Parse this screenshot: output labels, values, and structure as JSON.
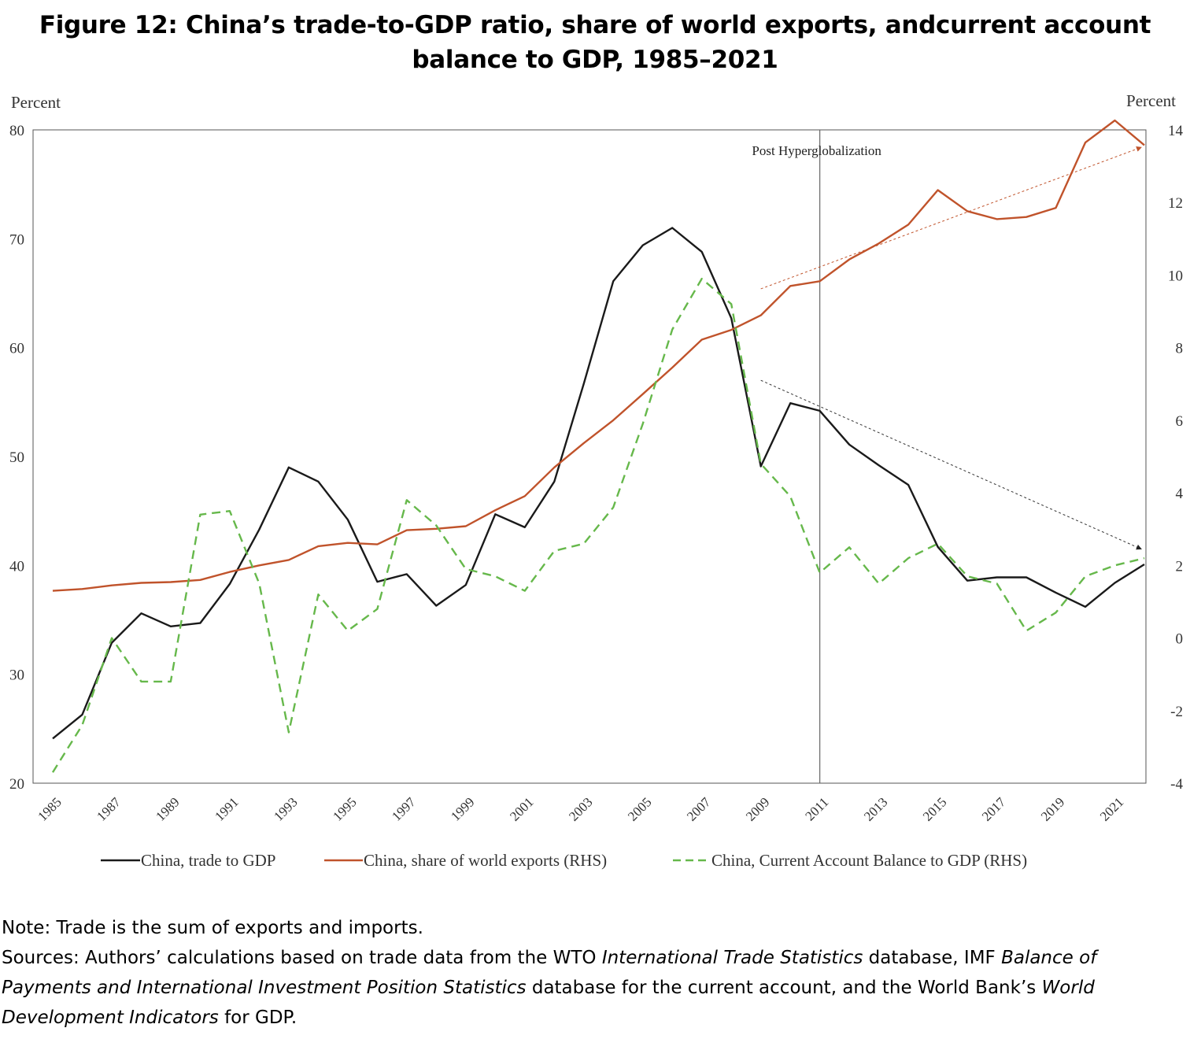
{
  "title": "Figure 12: China’s trade-to-GDP ratio, share of world exports, andcurrent account balance to GDP, 1985–2021",
  "notes": {
    "note": "Note: Trade is the sum of exports and imports.",
    "sources_parts": [
      {
        "text": "Sources: Authors’ calculations based on trade data from the WTO ",
        "italic": false
      },
      {
        "text": "International Trade Statistics",
        "italic": true
      },
      {
        "text": " database, IMF ",
        "italic": false
      },
      {
        "text": "Balance of Payments and International Investment Position Statistics",
        "italic": true
      },
      {
        "text": " database for the current account, and the World Bank’s ",
        "italic": false
      },
      {
        "text": "World Development Indicators",
        "italic": true
      },
      {
        "text": " for GDP.",
        "italic": false
      }
    ]
  },
  "chart_data": {
    "type": "line",
    "title": "Figure 12: China’s trade-to-GDP ratio, share of world exports, andcurrent account balance to GDP, 1985–2021",
    "ylabel_left": "Percent",
    "ylabel_right": "Percent",
    "ylim_left": [
      20,
      80
    ],
    "ylim_right": [
      -4,
      14
    ],
    "yticks_left": [
      20,
      30,
      40,
      50,
      60,
      70,
      80
    ],
    "yticks_right": [
      -4,
      -2,
      0,
      2,
      4,
      6,
      8,
      10,
      12,
      14
    ],
    "xlim": [
      1985,
      2022
    ],
    "xticks": [
      1985,
      1987,
      1989,
      1991,
      1993,
      1995,
      1997,
      1999,
      2001,
      2003,
      2005,
      2007,
      2009,
      2011,
      2013,
      2015,
      2017,
      2019,
      2021
    ],
    "grid": false,
    "legend_position": "bottom",
    "annotation": {
      "text": "Post Hyperglobalization",
      "x": 2011
    },
    "trend_arrows": [
      {
        "color": "#c0532b",
        "from": [
          2009,
          65.4
        ],
        "to": [
          2021.9,
          78.4
        ],
        "axis": "left"
      },
      {
        "color": "#333333",
        "from": [
          2009,
          57.0
        ],
        "to": [
          2021.9,
          41.5
        ],
        "axis": "left"
      }
    ],
    "series": [
      {
        "name": "China, trade to GDP",
        "axis": "left",
        "color": "#1a1a1a",
        "dash": "solid",
        "x": [
          1985,
          1986,
          1987,
          1988,
          1989,
          1990,
          1991,
          1992,
          1993,
          1994,
          1995,
          1996,
          1997,
          1998,
          1999,
          2000,
          2001,
          2002,
          2003,
          2004,
          2005,
          2006,
          2007,
          2008,
          2009,
          2010,
          2011,
          2012,
          2013,
          2014,
          2015,
          2016,
          2017,
          2018,
          2019,
          2020,
          2021,
          2022
        ],
        "y": [
          24.1,
          26.3,
          32.9,
          35.6,
          34.4,
          34.7,
          38.3,
          43.3,
          49.0,
          47.7,
          44.2,
          38.5,
          39.2,
          36.3,
          38.2,
          44.7,
          43.5,
          47.7,
          56.7,
          66.1,
          69.4,
          71.0,
          68.8,
          62.7,
          49.1,
          54.9,
          54.2,
          51.1,
          49.2,
          47.4,
          41.7,
          38.6,
          38.9,
          38.9,
          37.5,
          36.2,
          38.4,
          40.1
        ]
      },
      {
        "name": "China, share of world exports (RHS)",
        "axis": "right",
        "color": "#c0532b",
        "dash": "solid",
        "x": [
          1985,
          1986,
          1987,
          1988,
          1989,
          1990,
          1991,
          1992,
          1993,
          1994,
          1995,
          1996,
          1997,
          1998,
          1999,
          2000,
          2001,
          2002,
          2003,
          2004,
          2005,
          2006,
          2007,
          2008,
          2009,
          2010,
          2011,
          2012,
          2013,
          2014,
          2015,
          2016,
          2017,
          2018,
          2019,
          2020,
          2021,
          2022
        ],
        "y": [
          1.3,
          1.35,
          1.45,
          1.52,
          1.54,
          1.6,
          1.82,
          2.0,
          2.15,
          2.53,
          2.62,
          2.58,
          2.97,
          3.01,
          3.08,
          3.52,
          3.91,
          4.7,
          5.37,
          6.0,
          6.72,
          7.45,
          8.22,
          8.49,
          8.89,
          9.7,
          9.83,
          10.43,
          10.87,
          11.39,
          12.34,
          11.76,
          11.54,
          11.6,
          11.85,
          13.65,
          14.26,
          13.58
        ]
      },
      {
        "name": "China, Current Account Balance to GDP (RHS)",
        "axis": "right",
        "color": "#66b84b",
        "dash": "dashed",
        "x": [
          1985,
          1986,
          1987,
          1988,
          1989,
          1990,
          1991,
          1992,
          1993,
          1994,
          1995,
          1996,
          1997,
          1998,
          1999,
          2000,
          2001,
          2002,
          2003,
          2004,
          2005,
          2006,
          2007,
          2008,
          2009,
          2010,
          2011,
          2012,
          2013,
          2014,
          2015,
          2016,
          2017,
          2018,
          2019,
          2020,
          2021,
          2022
        ],
        "y": [
          -3.7,
          -2.4,
          0.0,
          -1.2,
          -1.2,
          3.4,
          3.5,
          1.5,
          -2.6,
          1.2,
          0.2,
          0.8,
          3.8,
          3.1,
          1.9,
          1.7,
          1.3,
          2.4,
          2.6,
          3.6,
          5.9,
          8.5,
          9.9,
          9.2,
          4.8,
          3.9,
          1.8,
          2.5,
          1.5,
          2.2,
          2.6,
          1.7,
          1.5,
          0.2,
          0.7,
          1.7,
          2.0,
          2.2
        ]
      }
    ]
  }
}
